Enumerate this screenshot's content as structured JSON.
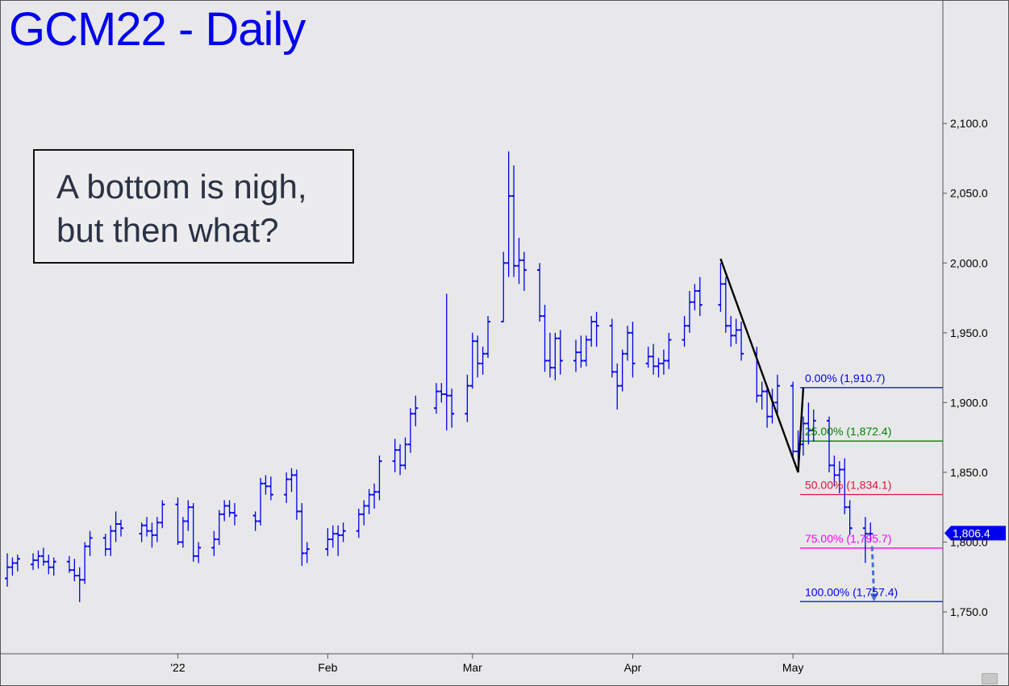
{
  "title": "GCM22 - Daily",
  "annotation": "A bottom is nigh,\nbut then what?",
  "colors": {
    "background": "#e8e8ea",
    "bars": "#0000ee",
    "axis": "#555555",
    "fib0": "#0000ee",
    "fib25": "#008000",
    "fib50": "#dc143c",
    "fib75": "#ff00ff",
    "fib100": "#0000ee",
    "pattern": "#000000",
    "projection": "#4a6fd4",
    "price_tag": "#0000ee"
  },
  "chart_data": {
    "type": "ohlc",
    "y_axis": {
      "min": 1720,
      "max": 2185,
      "ticks": [
        1750,
        1800,
        1850,
        1900,
        1950,
        2000,
        2050,
        2100
      ],
      "tick_labels": [
        "1,750.0",
        "1,800.0",
        "1,850.0",
        "1,900.0",
        "1,950.0",
        "2,000.0",
        "2,050.0",
        "2,100.0"
      ],
      "side": "right"
    },
    "x_axis": {
      "start_date": "2021-12-01",
      "end_date": "2022-05-31",
      "labels": [
        {
          "text": "'22",
          "date": "2022-01-03"
        },
        {
          "text": "Feb",
          "date": "2022-02-01"
        },
        {
          "text": "Mar",
          "date": "2022-03-01"
        },
        {
          "text": "Apr",
          "date": "2022-04-01"
        },
        {
          "text": "May",
          "date": "2022-05-02"
        }
      ]
    },
    "bars": [
      [
        "2021-12-01",
        1774,
        1792,
        1768,
        1782
      ],
      [
        "2021-12-02",
        1782,
        1789,
        1776,
        1785
      ],
      [
        "2021-12-03",
        1785,
        1791,
        1779,
        1788
      ],
      [
        "2021-12-06",
        1784,
        1792,
        1780,
        1787
      ],
      [
        "2021-12-07",
        1787,
        1794,
        1781,
        1790
      ],
      [
        "2021-12-08",
        1790,
        1796,
        1783,
        1786
      ],
      [
        "2021-12-09",
        1786,
        1791,
        1777,
        1782
      ],
      [
        "2021-12-10",
        1782,
        1789,
        1776,
        1786
      ],
      [
        "2021-12-13",
        1786,
        1790,
        1778,
        1780
      ],
      [
        "2021-12-14",
        1780,
        1788,
        1772,
        1776
      ],
      [
        "2021-12-15",
        1776,
        1782,
        1757,
        1773
      ],
      [
        "2021-12-16",
        1773,
        1800,
        1770,
        1797
      ],
      [
        "2021-12-17",
        1797,
        1808,
        1790,
        1803
      ],
      [
        "2021-12-20",
        1803,
        1806,
        1790,
        1795
      ],
      [
        "2021-12-21",
        1795,
        1812,
        1790,
        1808
      ],
      [
        "2021-12-22",
        1808,
        1822,
        1800,
        1813
      ],
      [
        "2021-12-23",
        1813,
        1816,
        1804,
        1810
      ],
      [
        "2021-12-27",
        1806,
        1814,
        1800,
        1812
      ],
      [
        "2021-12-28",
        1812,
        1818,
        1804,
        1808
      ],
      [
        "2021-12-29",
        1808,
        1814,
        1796,
        1805
      ],
      [
        "2021-12-30",
        1805,
        1818,
        1800,
        1814
      ],
      [
        "2021-12-31",
        1814,
        1830,
        1810,
        1827
      ],
      [
        "2022-01-03",
        1827,
        1832,
        1798,
        1800
      ],
      [
        "2022-01-04",
        1800,
        1818,
        1796,
        1815
      ],
      [
        "2022-01-05",
        1815,
        1830,
        1808,
        1825
      ],
      [
        "2022-01-06",
        1825,
        1828,
        1786,
        1790
      ],
      [
        "2022-01-07",
        1790,
        1800,
        1785,
        1796
      ],
      [
        "2022-01-10",
        1796,
        1808,
        1790,
        1802
      ],
      [
        "2022-01-11",
        1802,
        1823,
        1798,
        1820
      ],
      [
        "2022-01-12",
        1820,
        1830,
        1815,
        1826
      ],
      [
        "2022-01-13",
        1826,
        1830,
        1818,
        1821
      ],
      [
        "2022-01-14",
        1821,
        1828,
        1812,
        1819
      ],
      [
        "2022-01-18",
        1819,
        1822,
        1808,
        1815
      ],
      [
        "2022-01-19",
        1815,
        1846,
        1812,
        1842
      ],
      [
        "2022-01-20",
        1842,
        1848,
        1834,
        1840
      ],
      [
        "2022-01-21",
        1840,
        1847,
        1830,
        1834
      ],
      [
        "2022-01-24",
        1834,
        1850,
        1828,
        1845
      ],
      [
        "2022-01-25",
        1845,
        1853,
        1836,
        1848
      ],
      [
        "2022-01-26",
        1848,
        1852,
        1816,
        1822
      ],
      [
        "2022-01-27",
        1822,
        1828,
        1783,
        1792
      ],
      [
        "2022-01-28",
        1792,
        1800,
        1785,
        1795
      ],
      [
        "2022-02-01",
        1795,
        1810,
        1790,
        1802
      ],
      [
        "2022-02-02",
        1802,
        1812,
        1796,
        1806
      ],
      [
        "2022-02-03",
        1806,
        1812,
        1790,
        1805
      ],
      [
        "2022-02-04",
        1805,
        1814,
        1800,
        1808
      ],
      [
        "2022-02-07",
        1808,
        1824,
        1803,
        1820
      ],
      [
        "2022-02-08",
        1820,
        1830,
        1812,
        1826
      ],
      [
        "2022-02-09",
        1826,
        1838,
        1820,
        1834
      ],
      [
        "2022-02-10",
        1834,
        1842,
        1824,
        1836
      ],
      [
        "2022-02-11",
        1836,
        1862,
        1830,
        1858
      ],
      [
        "2022-02-14",
        1858,
        1874,
        1850,
        1866
      ],
      [
        "2022-02-15",
        1866,
        1870,
        1848,
        1855
      ],
      [
        "2022-02-16",
        1855,
        1875,
        1852,
        1870
      ],
      [
        "2022-02-17",
        1870,
        1896,
        1864,
        1892
      ],
      [
        "2022-02-18",
        1892,
        1905,
        1883,
        1896
      ],
      [
        "2022-02-22",
        1896,
        1914,
        1892,
        1908
      ],
      [
        "2022-02-23",
        1908,
        1914,
        1900,
        1906
      ],
      [
        "2022-02-24",
        1906,
        1978,
        1880,
        1905
      ],
      [
        "2022-02-25",
        1905,
        1910,
        1882,
        1892
      ],
      [
        "2022-02-28",
        1892,
        1920,
        1886,
        1912
      ],
      [
        "2022-03-01",
        1912,
        1950,
        1910,
        1944
      ],
      [
        "2022-03-02",
        1944,
        1948,
        1918,
        1928
      ],
      [
        "2022-03-03",
        1928,
        1940,
        1920,
        1935
      ],
      [
        "2022-03-04",
        1935,
        1962,
        1932,
        1958
      ],
      [
        "2022-03-07",
        1958,
        2008,
        1958,
        2000
      ],
      [
        "2022-03-08",
        2000,
        2080,
        1990,
        2048
      ],
      [
        "2022-03-09",
        2048,
        2070,
        1990,
        1998
      ],
      [
        "2022-03-10",
        1998,
        2018,
        1985,
        2002
      ],
      [
        "2022-03-11",
        2002,
        2008,
        1980,
        1995
      ],
      [
        "2022-03-14",
        1995,
        2000,
        1958,
        1962
      ],
      [
        "2022-03-15",
        1962,
        1970,
        1922,
        1930
      ],
      [
        "2022-03-16",
        1930,
        1950,
        1918,
        1925
      ],
      [
        "2022-03-17",
        1925,
        1950,
        1916,
        1946
      ],
      [
        "2022-03-18",
        1946,
        1952,
        1920,
        1930
      ],
      [
        "2022-03-21",
        1930,
        1945,
        1922,
        1936
      ],
      [
        "2022-03-22",
        1936,
        1948,
        1925,
        1930
      ],
      [
        "2022-03-23",
        1930,
        1948,
        1926,
        1945
      ],
      [
        "2022-03-24",
        1945,
        1962,
        1940,
        1958
      ],
      [
        "2022-03-25",
        1958,
        1965,
        1940,
        1955
      ],
      [
        "2022-03-28",
        1955,
        1960,
        1918,
        1922
      ],
      [
        "2022-03-29",
        1922,
        1928,
        1895,
        1912
      ],
      [
        "2022-03-30",
        1912,
        1938,
        1908,
        1935
      ],
      [
        "2022-03-31",
        1935,
        1955,
        1930,
        1950
      ],
      [
        "2022-04-01",
        1950,
        1958,
        1918,
        1928
      ],
      [
        "2022-04-04",
        1928,
        1940,
        1925,
        1933
      ],
      [
        "2022-04-05",
        1933,
        1942,
        1920,
        1926
      ],
      [
        "2022-04-06",
        1926,
        1932,
        1918,
        1928
      ],
      [
        "2022-04-07",
        1928,
        1938,
        1920,
        1930
      ],
      [
        "2022-04-08",
        1930,
        1950,
        1924,
        1945
      ],
      [
        "2022-04-11",
        1945,
        1962,
        1940,
        1955
      ],
      [
        "2022-04-12",
        1955,
        1980,
        1950,
        1972
      ],
      [
        "2022-04-13",
        1972,
        1985,
        1966,
        1980
      ],
      [
        "2022-04-14",
        1980,
        1990,
        1962,
        1970
      ],
      [
        "2022-04-18",
        1970,
        2000,
        1965,
        1985
      ],
      [
        "2022-04-19",
        1985,
        1990,
        1950,
        1955
      ],
      [
        "2022-04-20",
        1955,
        1962,
        1940,
        1948
      ],
      [
        "2022-04-21",
        1948,
        1960,
        1942,
        1952
      ],
      [
        "2022-04-22",
        1952,
        1958,
        1930,
        1935
      ],
      [
        "2022-04-25",
        1935,
        1940,
        1900,
        1905
      ],
      [
        "2022-04-26",
        1905,
        1915,
        1895,
        1908
      ],
      [
        "2022-04-27",
        1908,
        1912,
        1882,
        1890
      ],
      [
        "2022-04-28",
        1890,
        1910,
        1885,
        1900
      ],
      [
        "2022-04-29",
        1900,
        1920,
        1892,
        1912
      ],
      [
        "2022-05-02",
        1912,
        1915,
        1860,
        1865
      ],
      [
        "2022-05-03",
        1865,
        1880,
        1855,
        1870
      ],
      [
        "2022-05-04",
        1870,
        1890,
        1862,
        1885
      ],
      [
        "2022-05-05",
        1885,
        1900,
        1870,
        1880
      ],
      [
        "2022-05-06",
        1880,
        1895,
        1872,
        1887
      ],
      [
        "2022-05-09",
        1887,
        1890,
        1850,
        1855
      ],
      [
        "2022-05-10",
        1855,
        1862,
        1840,
        1848
      ],
      [
        "2022-05-11",
        1848,
        1858,
        1835,
        1852
      ],
      [
        "2022-05-12",
        1852,
        1860,
        1820,
        1825
      ],
      [
        "2022-05-13",
        1825,
        1830,
        1805,
        1810
      ],
      [
        "2022-05-16",
        1810,
        1818,
        1785,
        1806
      ],
      [
        "2022-05-17",
        1806,
        1814,
        1800,
        1806
      ]
    ],
    "fib_levels": [
      {
        "label": "0.00% (1,910.7)",
        "value": 1910.7,
        "color_key": "fib0"
      },
      {
        "label": "25.00% (1,872.4)",
        "value": 1872.4,
        "color_key": "fib25"
      },
      {
        "label": "50.00% (1,834.1)",
        "value": 1834.1,
        "color_key": "fib50"
      },
      {
        "label": "75.00% (1,795.7)",
        "value": 1795.7,
        "color_key": "fib75"
      },
      {
        "label": "100.00% (1,757.4)",
        "value": 1757.4,
        "color_key": "fib100"
      }
    ],
    "fib_start_date": "2022-05-04",
    "pattern_points": [
      {
        "date": "2022-04-18",
        "value": 2003
      },
      {
        "date": "2022-05-03",
        "value": 1850
      },
      {
        "date": "2022-05-04",
        "value": 1910.7
      }
    ],
    "projection": {
      "from": {
        "date": "2022-05-17",
        "value": 1797
      },
      "to": {
        "date": "2022-05-18",
        "value": 1757.4
      }
    },
    "last_price": {
      "label": "1,806.4",
      "value": 1806.4
    }
  }
}
